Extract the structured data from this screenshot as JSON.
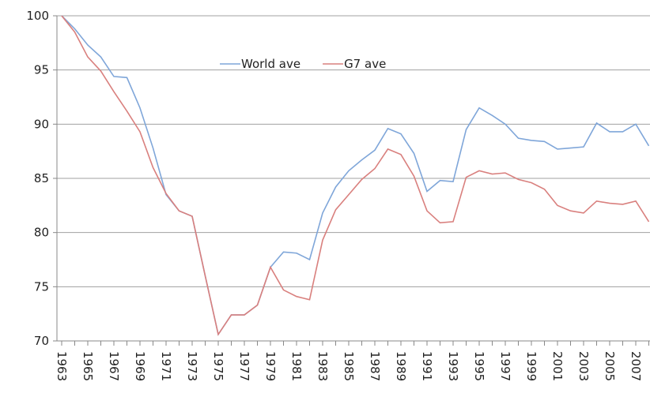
{
  "chart_data": {
    "type": "line",
    "categories": [
      "1963",
      null,
      "1965",
      null,
      "1967",
      null,
      "1969",
      null,
      "1971",
      null,
      "1973",
      null,
      "1975",
      null,
      "1977",
      null,
      "1979",
      null,
      "1981",
      null,
      "1983",
      null,
      "1985",
      null,
      "1987",
      null,
      "1989",
      null,
      "1991",
      null,
      "1993",
      null,
      "1995",
      null,
      "1997",
      null,
      "1999",
      null,
      "2001",
      null,
      "2003",
      null,
      "2005",
      null,
      "2007",
      null
    ],
    "series": [
      {
        "name": "World ave",
        "color": "#7fa6d9",
        "values": [
          100,
          98.8,
          97.3,
          96.2,
          94.4,
          94.3,
          91.5,
          87.8,
          83.5,
          82.0,
          81.5,
          76.0,
          70.6,
          72.4,
          72.4,
          73.3,
          76.8,
          78.2,
          78.1,
          77.5,
          81.8,
          84.2,
          85.7,
          86.7,
          87.6,
          89.6,
          89.1,
          87.3,
          83.8,
          84.8,
          84.7,
          89.5,
          91.5,
          90.8,
          90.0,
          88.7,
          88.5,
          88.4,
          87.7,
          87.8,
          87.9,
          90.1,
          89.3,
          89.3,
          90.0,
          88.0
        ]
      },
      {
        "name": "G7 ave",
        "color": "#d9807e",
        "values": [
          100,
          98.5,
          96.2,
          94.9,
          93.0,
          91.2,
          89.3,
          86.0,
          83.6,
          82.0,
          81.5,
          76.0,
          70.6,
          72.4,
          72.4,
          73.3,
          76.8,
          74.7,
          74.1,
          73.8,
          79.3,
          82.1,
          83.5,
          84.9,
          85.9,
          87.7,
          87.2,
          85.2,
          82.0,
          80.9,
          81.0,
          85.1,
          85.7,
          85.4,
          85.5,
          84.9,
          84.6,
          84.0,
          82.5,
          82.0,
          81.8,
          82.9,
          82.7,
          82.6,
          82.9,
          81.0
        ]
      }
    ],
    "ylim": [
      70,
      100
    ],
    "yticks": [
      70,
      75,
      80,
      85,
      90,
      95,
      100
    ],
    "grid": true
  }
}
